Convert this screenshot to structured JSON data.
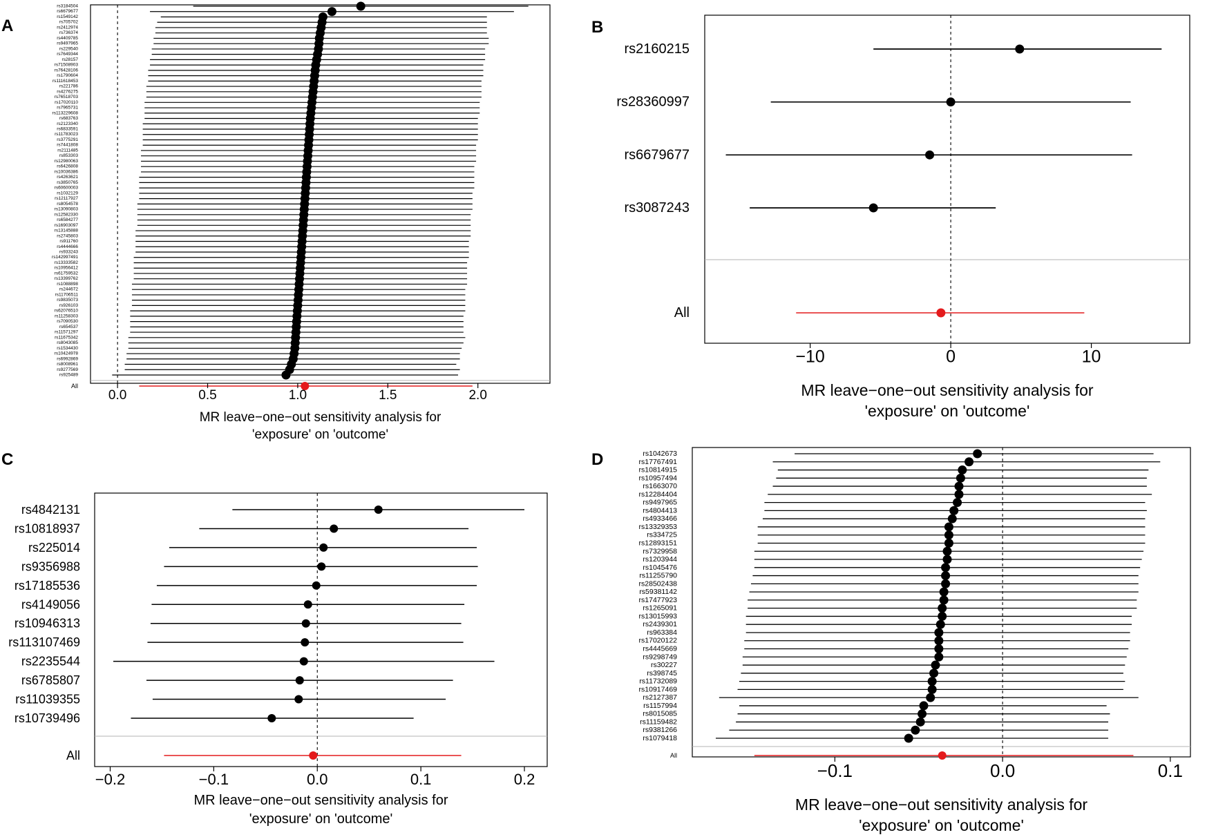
{
  "colors": {
    "estimate": "#000000",
    "overall": "#e41a1c",
    "axis": "#000000",
    "grid_separator": "#b3b3b3"
  },
  "chart_data": [
    {
      "panel": "A",
      "type": "forest",
      "xlabel_line1": "MR leave−one−out sensitivity analysis for",
      "xlabel_line2": "'exposure' on 'outcome'",
      "xlim": [
        -0.15,
        2.4
      ],
      "xticks": [
        0.0,
        0.5,
        1.0,
        1.5,
        2.0
      ],
      "xtick_labels": [
        "0.0",
        "0.5",
        "1.0",
        "1.5",
        "2.0"
      ],
      "null_line": 0,
      "snps": [
        "rs3184504",
        "rs6679677",
        "rs1549142",
        "rs705702",
        "rs2412974",
        "rs736374",
        "rs4409785",
        "rs9497965",
        "rs229540",
        "rs7649344",
        "rs28157",
        "rs71508903",
        "rs76428106",
        "rs1790604",
        "rs111618453",
        "rs221786",
        "rs4276275",
        "rs76518703",
        "rs17020110",
        "rs7965731",
        "rs113229608",
        "rs683763",
        "rs2123340",
        "rs6833591",
        "rs11783023",
        "rs3775291",
        "rs7441808",
        "rs2111485",
        "rs853303",
        "rs12980063",
        "rs6426808",
        "rs10036386",
        "rs4263621",
        "rs3850765",
        "rs60600003",
        "rs1032129",
        "rs12117927",
        "rs8054578",
        "rs13090803",
        "rs12582330",
        "rs6584277",
        "rs16903097",
        "rs13145888",
        "rs2745803",
        "rs911760",
        "rs4444666",
        "rs933243",
        "rs142997491",
        "rs13333582",
        "rs10956412",
        "rs61759532",
        "rs13399762",
        "rs1088898",
        "rs244672",
        "rs11706511",
        "rs9835073",
        "rs926103",
        "rs62076510",
        "rs11258303",
        "rs7090530",
        "rs654537",
        "rs11571297",
        "rs11675342",
        "rs8043085",
        "rs1534430",
        "rs10424978",
        "rs6992869",
        "rs8008961",
        "rs9277569",
        "rs925489"
      ],
      "estimates": [
        1.35,
        1.19,
        1.14,
        1.135,
        1.13,
        1.125,
        1.12,
        1.118,
        1.115,
        1.11,
        1.105,
        1.1,
        1.097,
        1.094,
        1.091,
        1.088,
        1.085,
        1.082,
        1.079,
        1.076,
        1.073,
        1.07,
        1.068,
        1.066,
        1.064,
        1.062,
        1.06,
        1.058,
        1.056,
        1.054,
        1.052,
        1.05,
        1.048,
        1.046,
        1.044,
        1.042,
        1.04,
        1.038,
        1.036,
        1.034,
        1.032,
        1.03,
        1.028,
        1.026,
        1.024,
        1.022,
        1.02,
        1.018,
        1.016,
        1.014,
        1.012,
        1.01,
        1.008,
        1.006,
        1.004,
        1.002,
        1.0,
        0.998,
        0.996,
        0.994,
        0.992,
        0.99,
        0.988,
        0.986,
        0.984,
        0.98,
        0.975,
        0.965,
        0.955,
        0.935
      ],
      "lower": [
        0.42,
        0.18,
        0.24,
        0.22,
        0.21,
        0.21,
        0.2,
        0.2,
        0.19,
        0.19,
        0.18,
        0.18,
        0.17,
        0.17,
        0.17,
        0.16,
        0.16,
        0.16,
        0.15,
        0.15,
        0.15,
        0.15,
        0.14,
        0.14,
        0.14,
        0.14,
        0.14,
        0.13,
        0.13,
        0.13,
        0.13,
        0.13,
        0.12,
        0.12,
        0.12,
        0.12,
        0.12,
        0.11,
        0.11,
        0.11,
        0.11,
        0.11,
        0.1,
        0.1,
        0.1,
        0.1,
        0.1,
        0.09,
        0.09,
        0.09,
        0.09,
        0.09,
        0.08,
        0.08,
        0.08,
        0.08,
        0.08,
        0.07,
        0.07,
        0.07,
        0.07,
        0.07,
        0.06,
        0.06,
        0.06,
        0.05,
        0.05,
        0.04,
        0.04,
        -0.03
      ],
      "upper": [
        2.28,
        2.2,
        2.05,
        2.05,
        2.05,
        2.05,
        2.06,
        2.06,
        2.04,
        2.04,
        2.04,
        2.03,
        2.03,
        2.03,
        2.02,
        2.02,
        2.02,
        2.02,
        2.01,
        2.01,
        2.01,
        2.0,
        2.0,
        2.0,
        2.0,
        2.0,
        1.99,
        1.99,
        1.99,
        1.99,
        1.98,
        1.98,
        1.98,
        1.98,
        1.98,
        1.97,
        1.97,
        1.97,
        1.97,
        1.96,
        1.96,
        1.96,
        1.96,
        1.96,
        1.95,
        1.95,
        1.95,
        1.95,
        1.94,
        1.94,
        1.94,
        1.94,
        1.94,
        1.93,
        1.93,
        1.93,
        1.93,
        1.93,
        1.92,
        1.92,
        1.92,
        1.92,
        1.93,
        1.92,
        1.91,
        1.9,
        1.9,
        1.88,
        1.9,
        1.89
      ],
      "all_label": "All",
      "all": {
        "estimate": 1.04,
        "lower": 0.12,
        "upper": 1.97
      }
    },
    {
      "panel": "B",
      "type": "forest",
      "xlabel_line1": "MR leave−one−out sensitivity analysis for",
      "xlabel_line2": "'exposure' on 'outcome'",
      "xlim": [
        -17.5,
        17
      ],
      "xticks": [
        -10,
        0,
        10
      ],
      "xtick_labels": [
        "−10",
        "0",
        "10"
      ],
      "null_line": 0,
      "snps": [
        "rs2160215",
        "rs28360997",
        "rs6679677",
        "rs3087243"
      ],
      "estimates": [
        4.9,
        0.0,
        -1.5,
        -5.5
      ],
      "lower": [
        -5.5,
        -12.8,
        -16.0,
        -14.3
      ],
      "upper": [
        15.0,
        12.8,
        12.9,
        3.2
      ],
      "all_label": "All",
      "all": {
        "estimate": -0.7,
        "lower": -11.0,
        "upper": 9.5
      }
    },
    {
      "panel": "C",
      "type": "forest",
      "xlabel_line1": "MR leave−one−out sensitivity analysis for",
      "xlabel_line2": "'exposure' on 'outcome'",
      "xlim": [
        -0.215,
        0.222
      ],
      "xticks": [
        -0.2,
        -0.1,
        0.0,
        0.1,
        0.2
      ],
      "xtick_labels": [
        "−0.2",
        "−0.1",
        "0.0",
        "0.1",
        "0.2"
      ],
      "null_line": 0,
      "snps": [
        "rs4842131",
        "rs10818937",
        "rs225014",
        "rs9356988",
        "rs17185536",
        "rs4149056",
        "rs10946313",
        "rs113107469",
        "rs2235544",
        "rs6785807",
        "rs11039355",
        "rs10739496"
      ],
      "estimates": [
        0.059,
        0.016,
        0.006,
        0.004,
        -0.001,
        -0.009,
        -0.011,
        -0.012,
        -0.013,
        -0.017,
        -0.018,
        -0.044
      ],
      "lower": [
        -0.082,
        -0.114,
        -0.143,
        -0.148,
        -0.155,
        -0.16,
        -0.161,
        -0.164,
        -0.197,
        -0.165,
        -0.159,
        -0.18
      ],
      "upper": [
        0.2,
        0.146,
        0.154,
        0.155,
        0.154,
        0.142,
        0.139,
        0.141,
        0.171,
        0.131,
        0.124,
        0.093
      ],
      "all_label": "All",
      "all": {
        "estimate": -0.004,
        "lower": -0.148,
        "upper": 0.139
      }
    },
    {
      "panel": "D",
      "type": "forest",
      "xlabel_line1": "MR leave−one−out sensitivity analysis for",
      "xlabel_line2": "'exposure' on 'outcome'",
      "xlim": [
        -0.185,
        0.112
      ],
      "xticks": [
        -0.1,
        0.0,
        0.1
      ],
      "xtick_labels": [
        "−0.1",
        "0.0",
        "0.1"
      ],
      "null_line": 0,
      "snps": [
        "rs1042673",
        "rs17767491",
        "rs10814915",
        "rs10957494",
        "rs1663070",
        "rs12284404",
        "rs9497965",
        "rs4804413",
        "rs4933466",
        "rs13329353",
        "rs334725",
        "rs12893151",
        "rs7329958",
        "rs1203944",
        "rs1045476",
        "rs11255790",
        "rs28502438",
        "rs59381142",
        "rs17477923",
        "rs1265091",
        "rs13015993",
        "rs2439301",
        "rs963384",
        "rs17020122",
        "rs4445669",
        "rs9298749",
        "rs30227",
        "rs398745",
        "rs11732089",
        "rs10917469",
        "rs2127387",
        "rs1157994",
        "rs8015085",
        "rs11159482",
        "rs9381266",
        "rs1079418"
      ],
      "estimates": [
        -0.015,
        -0.02,
        -0.024,
        -0.025,
        -0.026,
        -0.026,
        -0.027,
        -0.029,
        -0.03,
        -0.032,
        -0.032,
        -0.032,
        -0.033,
        -0.033,
        -0.034,
        -0.034,
        -0.034,
        -0.035,
        -0.035,
        -0.036,
        -0.036,
        -0.037,
        -0.038,
        -0.038,
        -0.038,
        -0.038,
        -0.04,
        -0.041,
        -0.042,
        -0.042,
        -0.043,
        -0.047,
        -0.048,
        -0.049,
        -0.052,
        -0.056
      ],
      "lower": [
        -0.124,
        -0.137,
        -0.134,
        -0.135,
        -0.137,
        -0.14,
        -0.142,
        -0.142,
        -0.143,
        -0.146,
        -0.146,
        -0.146,
        -0.148,
        -0.148,
        -0.148,
        -0.149,
        -0.15,
        -0.151,
        -0.152,
        -0.152,
        -0.153,
        -0.153,
        -0.153,
        -0.154,
        -0.154,
        -0.155,
        -0.155,
        -0.156,
        -0.157,
        -0.158,
        -0.169,
        -0.157,
        -0.158,
        -0.159,
        -0.163,
        -0.171
      ],
      "upper": [
        0.09,
        0.094,
        0.087,
        0.086,
        0.086,
        0.089,
        0.085,
        0.086,
        0.085,
        0.085,
        0.085,
        0.085,
        0.084,
        0.083,
        0.082,
        0.081,
        0.081,
        0.081,
        0.08,
        0.08,
        0.077,
        0.077,
        0.076,
        0.076,
        0.075,
        0.074,
        0.073,
        0.072,
        0.073,
        0.072,
        0.081,
        0.062,
        0.064,
        0.063,
        0.063,
        0.063
      ],
      "all_label": "All",
      "all": {
        "estimate": -0.036,
        "lower": -0.148,
        "upper": 0.078
      }
    }
  ]
}
